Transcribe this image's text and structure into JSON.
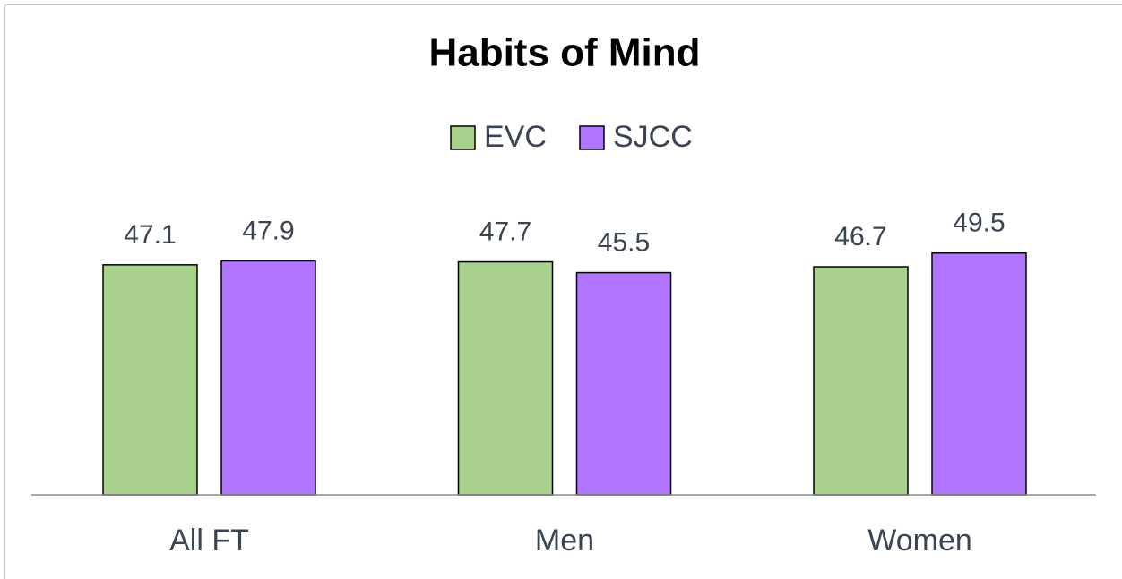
{
  "chart_data": {
    "type": "bar",
    "title": "Habits of Mind",
    "categories": [
      "All FT",
      "Men",
      "Women"
    ],
    "series": [
      {
        "name": "EVC",
        "color": "#a9d18e",
        "values": [
          47.1,
          47.7,
          46.7
        ]
      },
      {
        "name": "SJCC",
        "color": "#b175ff",
        "values": [
          47.9,
          45.5,
          49.5
        ]
      }
    ],
    "legend": "top"
  }
}
